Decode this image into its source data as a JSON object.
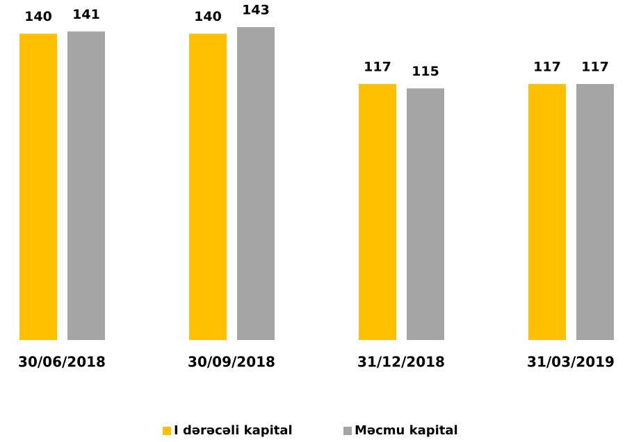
{
  "chart_data": {
    "type": "bar",
    "categories": [
      "30/06/2018",
      "30/09/2018",
      "31/12/2018",
      "31/03/2019"
    ],
    "series": [
      {
        "name": "I dərəcəli kapital",
        "color": "#FFC000",
        "values": [
          140,
          140,
          117,
          117
        ]
      },
      {
        "name": "Məcmu kapital",
        "color": "#A5A5A5",
        "values": [
          141,
          143,
          115,
          117
        ]
      }
    ],
    "ylim": [
      0,
      150
    ]
  }
}
